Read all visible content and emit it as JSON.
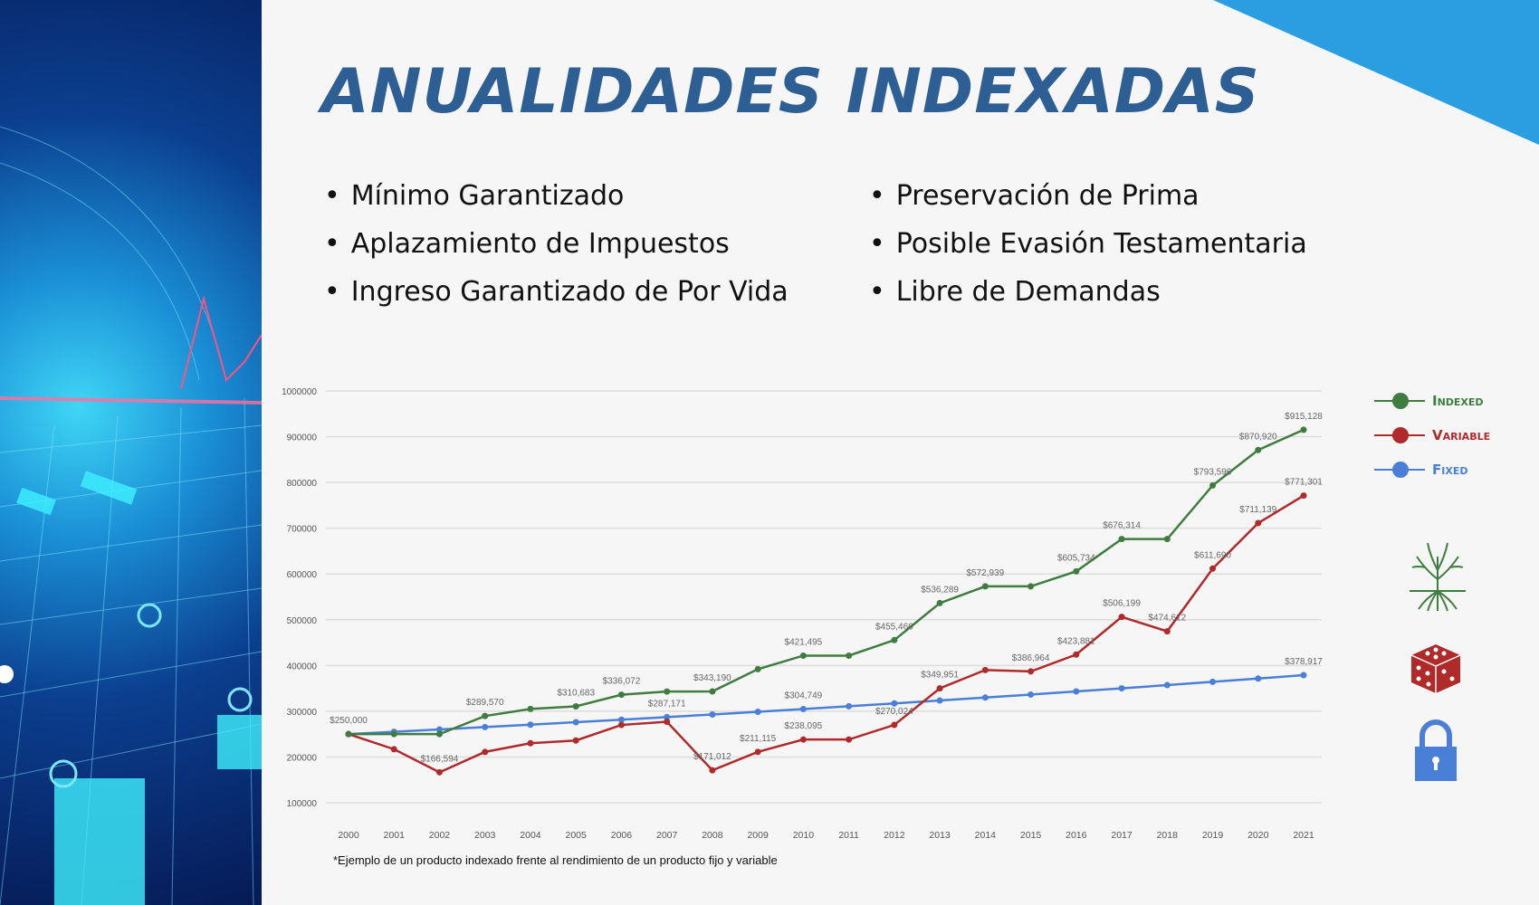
{
  "title": "ANUALIDADES INDEXADAS",
  "bullets_left": [
    "Mínimo Garantizado",
    "Aplazamiento de Impuestos",
    "Ingreso Garantizado de Por Vida"
  ],
  "bullets_right": [
    "Preservación de Prima",
    "Posible Evasión Testamentaria",
    "Libre de Demandas"
  ],
  "footnote": "*Ejemplo de un producto indexado frente al rendimiento de un producto fijo y variable",
  "legend": [
    {
      "label": "Indexed",
      "color": "#3e7d3e",
      "icon": "tree-icon"
    },
    {
      "label": "Variable",
      "color": "#b02a2a",
      "icon": "dice-icon"
    },
    {
      "label": "Fixed",
      "color": "#4a7fd8",
      "icon": "lock-icon"
    }
  ],
  "chart_data": {
    "type": "line",
    "title": "",
    "xlabel": "",
    "ylabel": "",
    "ylim": [
      100000,
      1000000
    ],
    "yticks": [
      "1000000",
      "900000",
      "800000",
      "700000",
      "600000",
      "500000",
      "400000",
      "300000",
      "200000",
      "100000"
    ],
    "x": [
      "2000",
      "2001",
      "2002",
      "2003",
      "2004",
      "2005",
      "2006",
      "2007",
      "2008",
      "2009",
      "2010",
      "2011",
      "2012",
      "2013",
      "2014",
      "2015",
      "2016",
      "2017",
      "2018",
      "2019",
      "2020",
      "2021"
    ],
    "grid": true,
    "legend_position": "right",
    "series": [
      {
        "name": "Indexed",
        "color": "#3e7d3e",
        "values": [
          250000,
          250000,
          250000,
          289570,
          305000,
          310683,
          336072,
          343000,
          343190,
          392000,
          421495,
          421495,
          455466,
          536289,
          572939,
          572939,
          605734,
          676314,
          676314,
          793596,
          870920,
          915128
        ],
        "labels": {
          "0": "$250,000",
          "3": "$289,570",
          "5": "$310,683",
          "6": "$336,072",
          "8": "$343,190",
          "10": "$421,495",
          "12": "$455,466",
          "13": "$536,289",
          "14": "$572,939",
          "16": "$605,734",
          "17": "$676,314",
          "19": "$793,596",
          "20": "$870,920",
          "21": "$915,128"
        }
      },
      {
        "name": "Variable",
        "color": "#b02a2a",
        "values": [
          250000,
          217000,
          166594,
          211000,
          230000,
          236000,
          270000,
          277000,
          171012,
          211115,
          238095,
          238095,
          270024,
          349951,
          390000,
          386964,
          423881,
          506199,
          474612,
          611690,
          711139,
          771301
        ],
        "labels": {
          "2": "$166,594",
          "8": "$171,012",
          "9": "$211,115",
          "10": "$238,095",
          "12": "$270,024",
          "13": "$349,951",
          "15": "$386,964",
          "16": "$423,881",
          "17": "$506,199",
          "18": "$474,612",
          "19": "$611,690",
          "20": "$711,139",
          "21": "$771,301"
        }
      },
      {
        "name": "Fixed",
        "color": "#4a7fd8",
        "values": [
          250000,
          255000,
          260100,
          265302,
          270608,
          276020,
          281541,
          287171,
          292915,
          298773,
          304749,
          310844,
          317060,
          323402,
          329870,
          336467,
          343196,
          350060,
          357062,
          364203,
          371487,
          378917
        ],
        "labels": {
          "7": "$287,171",
          "10": "$304,749",
          "21": "$378,917"
        }
      }
    ]
  }
}
